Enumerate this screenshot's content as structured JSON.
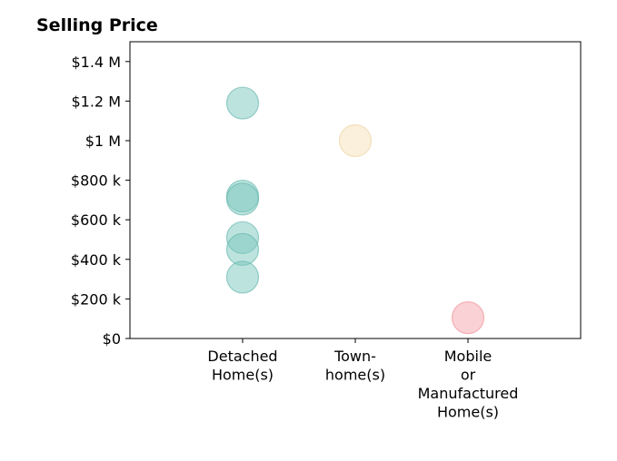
{
  "chart_data": {
    "type": "scatter",
    "title": "Selling Price",
    "xlabel": "",
    "ylabel": "",
    "categories": [
      [
        "Detached",
        "Home(s)"
      ],
      [
        "Town-",
        "home(s)"
      ],
      [
        "Mobile",
        "or",
        "Manufactured",
        "Home(s)"
      ]
    ],
    "xlim": [
      -1,
      3
    ],
    "ylim": [
      0,
      1500000
    ],
    "y_ticks": [
      0,
      200000,
      400000,
      600000,
      800000,
      1000000,
      1200000,
      1400000
    ],
    "y_tick_labels": [
      "$0",
      "$200 k",
      "$400 k",
      "$600 k",
      "$800 k",
      "$1 M",
      "$1.2 M",
      "$1.4 M"
    ],
    "grid": false,
    "legend": "none",
    "series": [
      {
        "category_index": 0,
        "color": "#7cc7bd",
        "stroke": "#5bb3a8",
        "values": [
          1190000,
          720000,
          705000,
          510000,
          450000,
          310000
        ]
      },
      {
        "category_index": 1,
        "color": "#f5e2b8",
        "stroke": "#ecd09a",
        "values": [
          1000000
        ]
      },
      {
        "category_index": 2,
        "color": "#f6a3ab",
        "stroke": "#ee8a94",
        "values": [
          105000
        ]
      }
    ]
  }
}
